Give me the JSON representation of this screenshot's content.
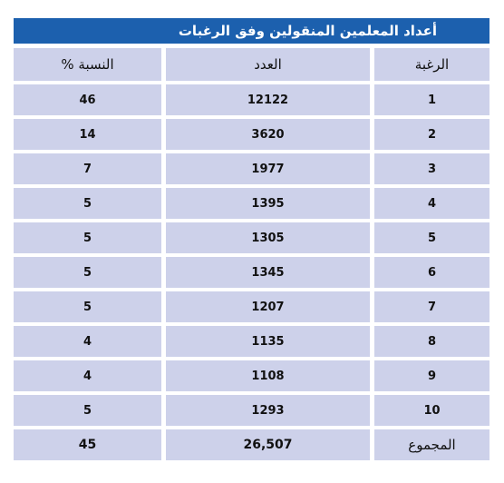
{
  "title": "أعداد المعلمين المنقولين وفق الرغبات",
  "headers": {
    "rank": "الرغبة",
    "count": "العدد",
    "percent": "النسبة %"
  },
  "rows": [
    {
      "rank": "1",
      "count": "12122",
      "percent": "46"
    },
    {
      "rank": "2",
      "count": "3620",
      "percent": "14"
    },
    {
      "rank": "3",
      "count": "1977",
      "percent": "7"
    },
    {
      "rank": "4",
      "count": "1395",
      "percent": "5"
    },
    {
      "rank": "5",
      "count": "1305",
      "percent": "5"
    },
    {
      "rank": "6",
      "count": "1345",
      "percent": "5"
    },
    {
      "rank": "7",
      "count": "1207",
      "percent": "5"
    },
    {
      "rank": "8",
      "count": "1135",
      "percent": "4"
    },
    {
      "rank": "9",
      "count": "1108",
      "percent": "4"
    },
    {
      "rank": "10",
      "count": "1293",
      "percent": "5"
    }
  ],
  "total": {
    "label": "المجموع",
    "count": "26,507",
    "percent": "45"
  },
  "colors": {
    "title_bg": "#1c60ae",
    "cell_bg": "#cdd1ea",
    "text": "#111111"
  }
}
